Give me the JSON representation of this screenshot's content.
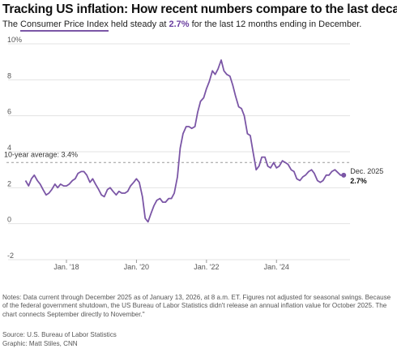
{
  "header": {
    "title": "Tracking US inflation: How recent numbers compare to the last decade",
    "subtitle_prefix": "The ",
    "subtitle_link": "Consumer Price Index",
    "subtitle_mid": " held steady at ",
    "subtitle_value": "2.7%",
    "subtitle_suffix": " for the last 12 months ending in December."
  },
  "chart_data": {
    "type": "line",
    "ylim": [
      -2,
      10
    ],
    "xlim": [
      2016.75,
      2026.1
    ],
    "y_ticks": [
      -2,
      0,
      2,
      4,
      6,
      8,
      10
    ],
    "y_tick_labels": [
      "-2",
      "0",
      "2",
      "4",
      "6",
      "8",
      "10%"
    ],
    "x_ticks": [
      2018,
      2020,
      2022,
      2024
    ],
    "x_tick_labels": [
      "Jan. '18",
      "Jan. '20",
      "Jan. '22",
      "Jan. '24"
    ],
    "grid": "horizontal",
    "reference_line": {
      "value": 3.4,
      "label": "10-year average: 3.4%"
    },
    "end_label": {
      "date": "Dec. 2025",
      "value": "2.7%"
    },
    "series": [
      {
        "color": "#7b56a6",
        "points": [
          [
            2016.83,
            2.4
          ],
          [
            2016.92,
            2.1
          ],
          [
            2017.0,
            2.5
          ],
          [
            2017.08,
            2.7
          ],
          [
            2017.17,
            2.4
          ],
          [
            2017.25,
            2.2
          ],
          [
            2017.33,
            1.9
          ],
          [
            2017.42,
            1.6
          ],
          [
            2017.5,
            1.7
          ],
          [
            2017.58,
            1.9
          ],
          [
            2017.67,
            2.2
          ],
          [
            2017.75,
            2.0
          ],
          [
            2017.83,
            2.2
          ],
          [
            2017.92,
            2.1
          ],
          [
            2018.0,
            2.1
          ],
          [
            2018.08,
            2.2
          ],
          [
            2018.17,
            2.4
          ],
          [
            2018.25,
            2.5
          ],
          [
            2018.33,
            2.8
          ],
          [
            2018.42,
            2.9
          ],
          [
            2018.5,
            2.9
          ],
          [
            2018.58,
            2.7
          ],
          [
            2018.67,
            2.3
          ],
          [
            2018.75,
            2.5
          ],
          [
            2018.83,
            2.2
          ],
          [
            2018.92,
            1.9
          ],
          [
            2019.0,
            1.6
          ],
          [
            2019.08,
            1.5
          ],
          [
            2019.17,
            1.9
          ],
          [
            2019.25,
            2.0
          ],
          [
            2019.33,
            1.8
          ],
          [
            2019.42,
            1.6
          ],
          [
            2019.5,
            1.8
          ],
          [
            2019.58,
            1.7
          ],
          [
            2019.67,
            1.7
          ],
          [
            2019.75,
            1.8
          ],
          [
            2019.83,
            2.1
          ],
          [
            2019.92,
            2.3
          ],
          [
            2020.0,
            2.5
          ],
          [
            2020.08,
            2.3
          ],
          [
            2020.17,
            1.5
          ],
          [
            2020.25,
            0.3
          ],
          [
            2020.33,
            0.1
          ],
          [
            2020.42,
            0.6
          ],
          [
            2020.5,
            1.0
          ],
          [
            2020.58,
            1.3
          ],
          [
            2020.67,
            1.4
          ],
          [
            2020.75,
            1.2
          ],
          [
            2020.83,
            1.2
          ],
          [
            2020.92,
            1.4
          ],
          [
            2021.0,
            1.4
          ],
          [
            2021.08,
            1.7
          ],
          [
            2021.17,
            2.6
          ],
          [
            2021.25,
            4.2
          ],
          [
            2021.33,
            5.0
          ],
          [
            2021.42,
            5.4
          ],
          [
            2021.5,
            5.4
          ],
          [
            2021.58,
            5.3
          ],
          [
            2021.67,
            5.4
          ],
          [
            2021.75,
            6.2
          ],
          [
            2021.83,
            6.8
          ],
          [
            2021.92,
            7.0
          ],
          [
            2022.0,
            7.5
          ],
          [
            2022.08,
            7.9
          ],
          [
            2022.17,
            8.5
          ],
          [
            2022.25,
            8.3
          ],
          [
            2022.33,
            8.6
          ],
          [
            2022.42,
            9.1
          ],
          [
            2022.5,
            8.5
          ],
          [
            2022.58,
            8.3
          ],
          [
            2022.67,
            8.2
          ],
          [
            2022.75,
            7.7
          ],
          [
            2022.83,
            7.1
          ],
          [
            2022.92,
            6.5
          ],
          [
            2023.0,
            6.4
          ],
          [
            2023.08,
            6.0
          ],
          [
            2023.17,
            5.0
          ],
          [
            2023.25,
            4.9
          ],
          [
            2023.33,
            4.0
          ],
          [
            2023.42,
            3.0
          ],
          [
            2023.5,
            3.2
          ],
          [
            2023.58,
            3.7
          ],
          [
            2023.67,
            3.7
          ],
          [
            2023.75,
            3.2
          ],
          [
            2023.83,
            3.1
          ],
          [
            2023.92,
            3.4
          ],
          [
            2024.0,
            3.1
          ],
          [
            2024.08,
            3.2
          ],
          [
            2024.17,
            3.5
          ],
          [
            2024.25,
            3.4
          ],
          [
            2024.33,
            3.3
          ],
          [
            2024.42,
            3.0
          ],
          [
            2024.5,
            2.9
          ],
          [
            2024.58,
            2.5
          ],
          [
            2024.67,
            2.4
          ],
          [
            2024.75,
            2.6
          ],
          [
            2024.83,
            2.7
          ],
          [
            2024.92,
            2.9
          ],
          [
            2025.0,
            3.0
          ],
          [
            2025.08,
            2.8
          ],
          [
            2025.17,
            2.4
          ],
          [
            2025.25,
            2.3
          ],
          [
            2025.33,
            2.4
          ],
          [
            2025.42,
            2.7
          ],
          [
            2025.5,
            2.7
          ],
          [
            2025.58,
            2.9
          ],
          [
            2025.67,
            3.0
          ],
          [
            2025.83,
            2.7
          ],
          [
            2025.92,
            2.7
          ]
        ]
      }
    ]
  },
  "footer": {
    "notes": "Notes: Data current through December 2025 as of January 13, 2026, at 8 a.m. ET. Figures not adjusted for seasonal swings. Because of the federal government shutdown, the US Bureau of Labor Statistics didn't release an annual inflation value for October 2025. The chart connects September directly to November.\"",
    "source": "Source: U.S. Bureau of Labor Statistics",
    "credit": "Graphic: Matt Stiles, CNN"
  }
}
